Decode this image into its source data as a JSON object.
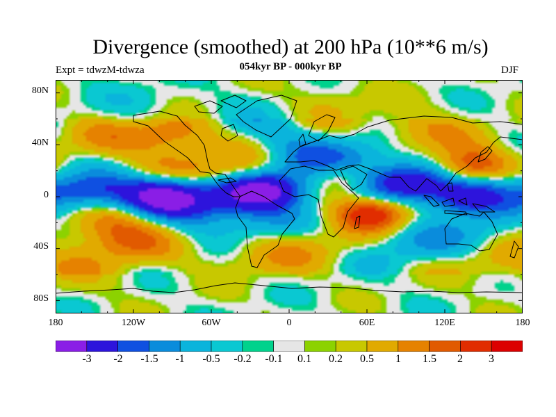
{
  "plot": {
    "title": "Divergence (smoothed) at 200 hPa (10**6 m/s)",
    "subtitle": "054kyr BP - 000kyr BP",
    "left_label": "Expt = tdwzM-tdwza",
    "right_label": "DJF"
  },
  "map": {
    "projection": "cylindrical equidistant",
    "lon_range": [
      -180,
      180
    ],
    "lat_range": [
      -90,
      90
    ],
    "ocean_color": "#e6e6e6",
    "x_ticks": [
      "180",
      "120W",
      "60W",
      "0",
      "60E",
      "120E",
      "180"
    ],
    "y_ticks": [
      "80N",
      "40N",
      "0",
      "40S",
      "80S"
    ]
  },
  "colorbar": {
    "labels": [
      "-3",
      "-2",
      "-1.5",
      "-1",
      "-0.5",
      "-0.2",
      "-0.1",
      "0.1",
      "0.2",
      "0.5",
      "1",
      "1.5",
      "2",
      "3"
    ],
    "colors": [
      "#8a1ee6",
      "#2d14dc",
      "#0f50e1",
      "#0a8cdc",
      "#0ab4dc",
      "#0ac8d2",
      "#00d28c",
      "#e6e6e6",
      "#8cd200",
      "#c8c800",
      "#e1aa00",
      "#e68200",
      "#e15a00",
      "#e12d00",
      "#dc0000"
    ]
  },
  "chart_data": {
    "type": "heatmap",
    "title": "Divergence (smoothed) at 200 hPa (10**6 m/s)",
    "subtitle": "054kyr BP - 000kyr BP",
    "season": "DJF",
    "experiment": "Expt = tdwzM-tdwza",
    "xlim": [
      -180,
      180
    ],
    "ylim": [
      -90,
      90
    ],
    "contour_levels": [
      -3,
      -2,
      -1.5,
      -1,
      -0.5,
      -0.2,
      -0.1,
      0.1,
      0.2,
      0.5,
      1,
      1.5,
      2,
      3
    ],
    "features": [
      {
        "lon": -155,
        "lat": 3,
        "value": -1.6
      },
      {
        "lon": -120,
        "lat": 4,
        "value": -1.1
      },
      {
        "lon": -95,
        "lat": 1,
        "value": -2.6
      },
      {
        "lon": -70,
        "lat": -3,
        "value": -1.4
      },
      {
        "lon": -40,
        "lat": 18,
        "value": 1.4
      },
      {
        "lon": -30,
        "lat": 5,
        "value": -2.4
      },
      {
        "lon": -10,
        "lat": 4,
        "value": -1.6
      },
      {
        "lon": 20,
        "lat": 18,
        "value": -1.5
      },
      {
        "lon": 40,
        "lat": 15,
        "value": 2.2
      },
      {
        "lon": 65,
        "lat": -12,
        "value": 2.9
      },
      {
        "lon": 52,
        "lat": 28,
        "value": -1.2
      },
      {
        "lon": 78,
        "lat": 10,
        "value": -1.5
      },
      {
        "lon": 102,
        "lat": 10,
        "value": -2.0
      },
      {
        "lon": 118,
        "lat": 4,
        "value": 1.6
      },
      {
        "lon": 140,
        "lat": 23,
        "value": 2.4
      },
      {
        "lon": 130,
        "lat": 0,
        "value": -3.0
      },
      {
        "lon": 160,
        "lat": 5,
        "value": -1.1
      },
      {
        "lon": -140,
        "lat": -20,
        "value": 1.1
      },
      {
        "lon": -125,
        "lat": -35,
        "value": 1.1
      },
      {
        "lon": -140,
        "lat": 45,
        "value": 0.9
      },
      {
        "lon": -115,
        "lat": 70,
        "value": -0.6
      },
      {
        "lon": -90,
        "lat": 50,
        "value": 1.6
      },
      {
        "lon": -20,
        "lat": 60,
        "value": -0.5
      },
      {
        "lon": 30,
        "lat": 70,
        "value": 0.8
      },
      {
        "lon": 100,
        "lat": 50,
        "value": 1.0
      },
      {
        "lon": 0,
        "lat": 40,
        "value": -0.5
      },
      {
        "lon": -20,
        "lat": -20,
        "value": -0.8
      },
      {
        "lon": -25,
        "lat": -45,
        "value": 0.8
      },
      {
        "lon": 20,
        "lat": -35,
        "value": 0.6
      },
      {
        "lon": 90,
        "lat": -35,
        "value": -0.8
      },
      {
        "lon": 140,
        "lat": -30,
        "value": -0.7
      },
      {
        "lon": 150,
        "lat": -50,
        "value": 0.6
      },
      {
        "lon": -160,
        "lat": -60,
        "value": 0.5
      },
      {
        "lon": -90,
        "lat": 20,
        "value": 0.9
      },
      {
        "lon": -50,
        "lat": -15,
        "value": -0.5
      }
    ]
  }
}
